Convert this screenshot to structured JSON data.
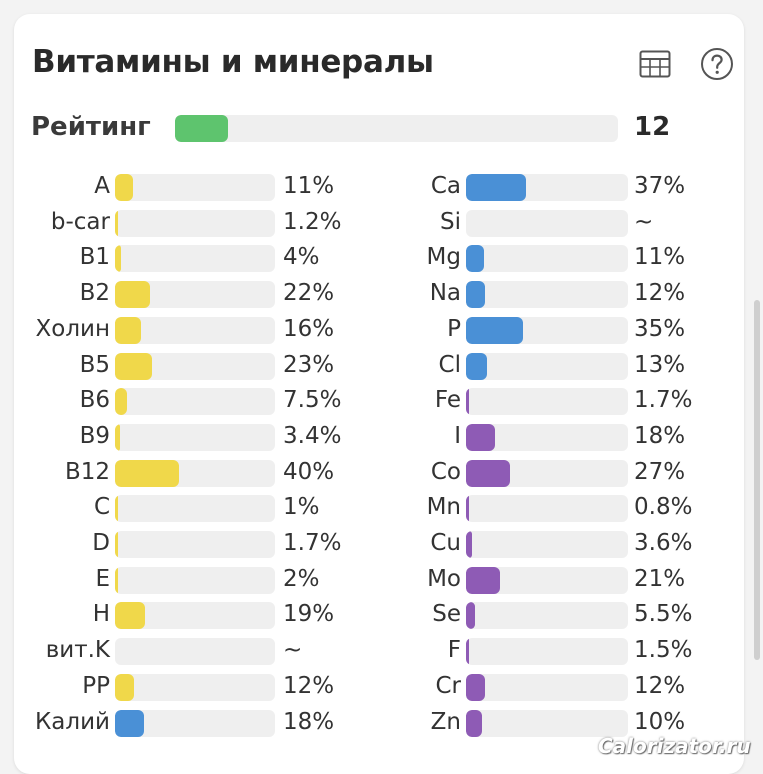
{
  "header": {
    "title": "Витамины и минералы",
    "table_icon": "table-icon",
    "help_icon": "help-circle-icon"
  },
  "rating": {
    "label": "Рейтинг",
    "value": "12",
    "fill_fraction": 0.12,
    "color": "#5ec46e"
  },
  "colors": {
    "vitamin": "#f0d84a",
    "mineral_blue": "#4a90d6",
    "mineral_purple": "#8e5bb5",
    "track": "#efefef"
  },
  "vitamins": [
    {
      "label": "A",
      "value": "11%",
      "pct": 11,
      "color": "#f0d84a"
    },
    {
      "label": "b-car",
      "value": "1.2%",
      "pct": 1.2,
      "color": "#f0d84a"
    },
    {
      "label": "B1",
      "value": "4%",
      "pct": 4,
      "color": "#f0d84a"
    },
    {
      "label": "B2",
      "value": "22%",
      "pct": 22,
      "color": "#f0d84a"
    },
    {
      "label": "Холин",
      "value": "16%",
      "pct": 16,
      "color": "#f0d84a"
    },
    {
      "label": "B5",
      "value": "23%",
      "pct": 23,
      "color": "#f0d84a"
    },
    {
      "label": "B6",
      "value": "7.5%",
      "pct": 7.5,
      "color": "#f0d84a"
    },
    {
      "label": "B9",
      "value": "3.4%",
      "pct": 3.4,
      "color": "#f0d84a"
    },
    {
      "label": "B12",
      "value": "40%",
      "pct": 40,
      "color": "#f0d84a"
    },
    {
      "label": "C",
      "value": "1%",
      "pct": 1,
      "color": "#f0d84a"
    },
    {
      "label": "D",
      "value": "1.7%",
      "pct": 1.7,
      "color": "#f0d84a"
    },
    {
      "label": "E",
      "value": "2%",
      "pct": 2,
      "color": "#f0d84a"
    },
    {
      "label": "H",
      "value": "19%",
      "pct": 19,
      "color": "#f0d84a"
    },
    {
      "label": "вит.K",
      "value": "~",
      "pct": 0,
      "color": "#f0d84a"
    },
    {
      "label": "PP",
      "value": "12%",
      "pct": 12,
      "color": "#f0d84a"
    },
    {
      "label": "Калий",
      "value": "18%",
      "pct": 18,
      "color": "#4a90d6"
    }
  ],
  "minerals": [
    {
      "label": "Ca",
      "value": "37%",
      "pct": 37,
      "color": "#4a90d6"
    },
    {
      "label": "Si",
      "value": "~",
      "pct": 0,
      "color": "#4a90d6"
    },
    {
      "label": "Mg",
      "value": "11%",
      "pct": 11,
      "color": "#4a90d6"
    },
    {
      "label": "Na",
      "value": "12%",
      "pct": 12,
      "color": "#4a90d6"
    },
    {
      "label": "P",
      "value": "35%",
      "pct": 35,
      "color": "#4a90d6"
    },
    {
      "label": "Cl",
      "value": "13%",
      "pct": 13,
      "color": "#4a90d6"
    },
    {
      "label": "Fe",
      "value": "1.7%",
      "pct": 1.7,
      "color": "#8e5bb5"
    },
    {
      "label": "I",
      "value": "18%",
      "pct": 18,
      "color": "#8e5bb5"
    },
    {
      "label": "Co",
      "value": "27%",
      "pct": 27,
      "color": "#8e5bb5"
    },
    {
      "label": "Mn",
      "value": "0.8%",
      "pct": 0.8,
      "color": "#8e5bb5"
    },
    {
      "label": "Cu",
      "value": "3.6%",
      "pct": 3.6,
      "color": "#8e5bb5"
    },
    {
      "label": "Mo",
      "value": "21%",
      "pct": 21,
      "color": "#8e5bb5"
    },
    {
      "label": "Se",
      "value": "5.5%",
      "pct": 5.5,
      "color": "#8e5bb5"
    },
    {
      "label": "F",
      "value": "1.5%",
      "pct": 1.5,
      "color": "#8e5bb5"
    },
    {
      "label": "Cr",
      "value": "12%",
      "pct": 12,
      "color": "#8e5bb5"
    },
    {
      "label": "Zn",
      "value": "10%",
      "pct": 10,
      "color": "#8e5bb5"
    }
  ],
  "watermark": "Calorizator.ru"
}
